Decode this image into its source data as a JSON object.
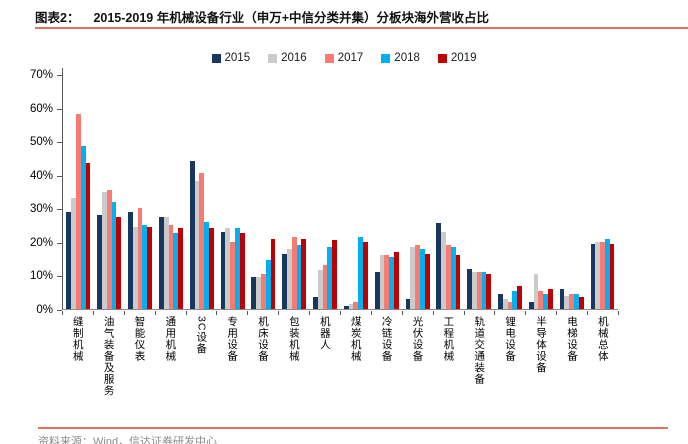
{
  "header": {
    "label": "图表2：",
    "title": "2015-2019 年机械设备行业（申万+中信分类并集）分板块海外营收占比"
  },
  "footer": {
    "source": "资料来源：Wind，信达证券研发中心"
  },
  "colors": {
    "accent_rule": "#e8705f",
    "axis": "#5a5a5a",
    "series_2015": "#17375E",
    "series_2016": "#CBCBCB",
    "series_2017": "#F87A70",
    "series_2018": "#00B0F0",
    "series_2019": "#C00000"
  },
  "chart_data": {
    "type": "bar",
    "title": "2015-2019 年机械设备行业（申万+中信分类并集）分板块海外营收占比",
    "xlabel": "",
    "ylabel": "",
    "ylim": [
      0,
      70
    ],
    "y_ticks": [
      "70%",
      "60%",
      "50%",
      "40%",
      "30%",
      "20%",
      "10%",
      "0%"
    ],
    "grid": false,
    "legend_position": "top",
    "categories": [
      "缝制机械",
      "油气装备及服务",
      "智能仪表",
      "通用机械",
      "3C设备",
      "专用设备",
      "机床设备",
      "包装机械",
      "机器人",
      "煤炭机械",
      "冷链设备",
      "光伏设备",
      "工程机械",
      "轨道交通装备",
      "锂电设备",
      "半导体设备",
      "电梯设备",
      "机械总体"
    ],
    "series": [
      {
        "name": "2015",
        "color": "#17375E",
        "values": [
          29,
          28,
          29,
          27.5,
          44,
          23,
          9.5,
          16.5,
          3.5,
          1,
          11,
          3,
          25.5,
          12,
          4.5,
          2,
          6,
          19.5
        ]
      },
      {
        "name": "2016",
        "color": "#CBCBCB",
        "values": [
          33,
          35,
          24.5,
          27.5,
          38,
          24,
          9.5,
          18,
          11.5,
          1.5,
          16,
          18.5,
          23,
          11,
          3,
          10.5,
          4,
          20
        ]
      },
      {
        "name": "2017",
        "color": "#F87A70",
        "values": [
          58,
          35.5,
          30,
          25,
          40.5,
          20,
          10.5,
          21.5,
          13,
          2,
          16,
          19,
          19,
          11,
          2,
          5.5,
          4.5,
          20
        ]
      },
      {
        "name": "2018",
        "color": "#00B0F0",
        "values": [
          48.5,
          32,
          25,
          22.5,
          26,
          24,
          14.5,
          19,
          18.5,
          21.5,
          15.5,
          18,
          18.5,
          11,
          5.5,
          4.5,
          4.5,
          21
        ]
      },
      {
        "name": "2019",
        "color": "#C00000",
        "values": [
          43.5,
          27.5,
          24.5,
          24,
          24,
          22.5,
          21,
          21,
          20.5,
          20,
          17,
          16.5,
          16,
          10.5,
          7,
          6,
          3.5,
          19.5
        ]
      }
    ]
  }
}
